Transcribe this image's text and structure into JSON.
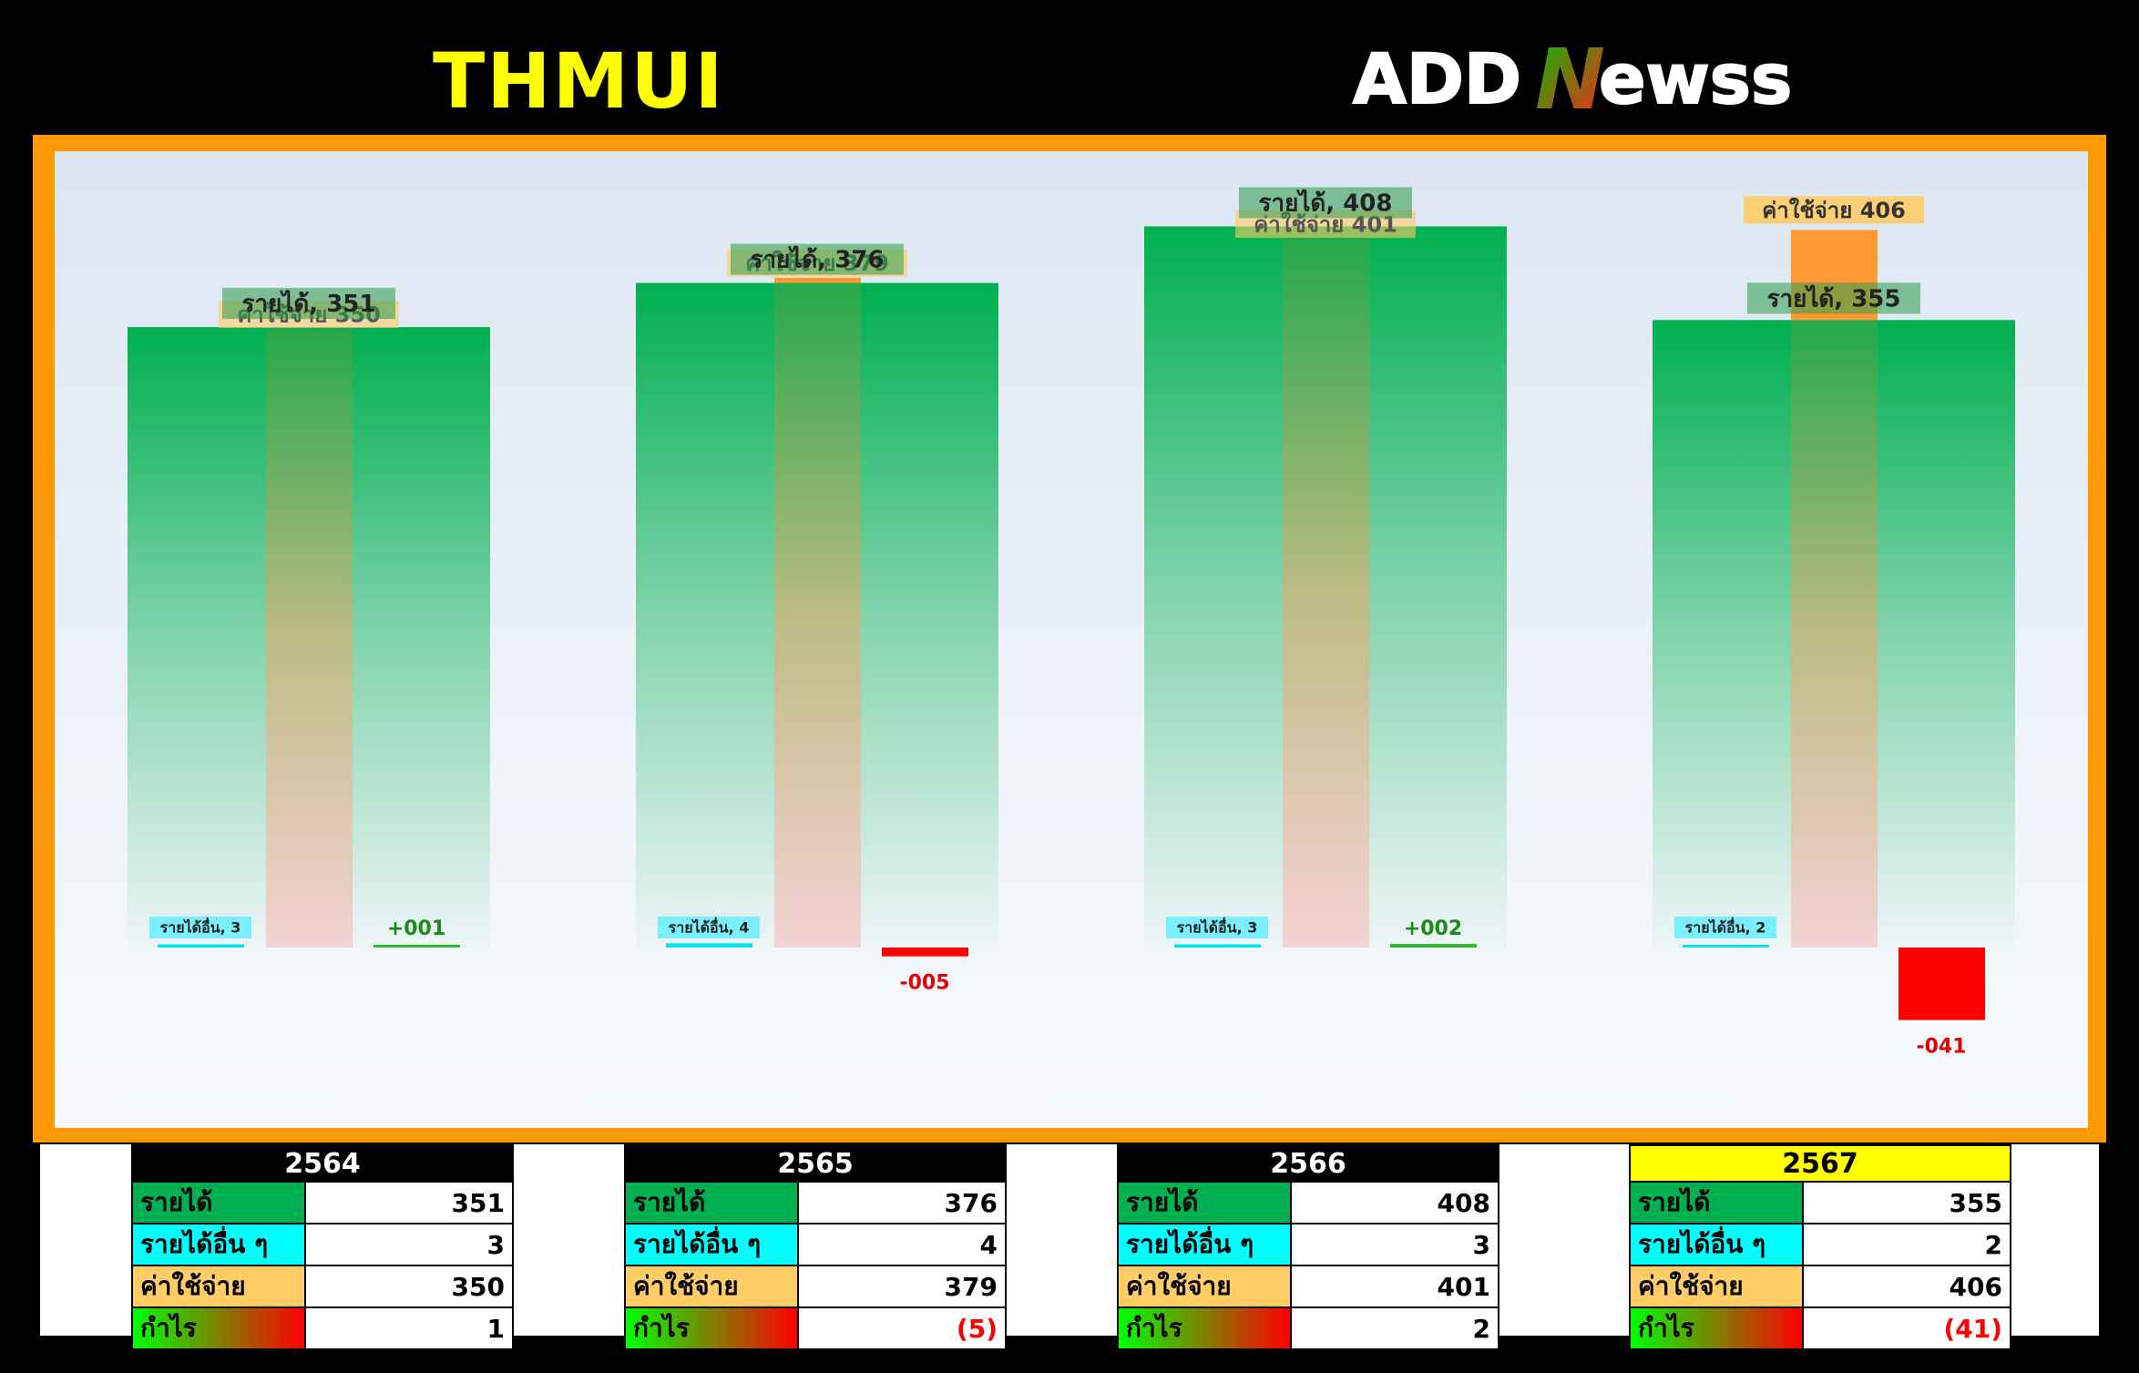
{
  "header": {
    "ticker": "THMUI",
    "logo_text_left": "ADD",
    "logo_text_n": "N",
    "logo_text_right": "ewss"
  },
  "colors": {
    "revenue": "#00b050",
    "other_income": "#00ffff",
    "expense": "#ffcc66",
    "expense_bar": "#ff9933",
    "profit_pos": "#2db82d",
    "profit_neg": "#ff0000",
    "frame": "#ff9900",
    "highlight_header": "#ffff00"
  },
  "chart_data": {
    "type": "bar",
    "categories": [
      "2564",
      "2565",
      "2566",
      "2567"
    ],
    "series": [
      {
        "name": "รายได้",
        "values": [
          351,
          376,
          408,
          355
        ]
      },
      {
        "name": "รายได้อื่น ๆ",
        "values": [
          3,
          4,
          3,
          2
        ]
      },
      {
        "name": "ค่าใช้จ่าย",
        "values": [
          350,
          379,
          401,
          406
        ]
      },
      {
        "name": "กำไร",
        "values": [
          1,
          -5,
          2,
          -41
        ]
      }
    ],
    "bar_labels": {
      "revenue": [
        "รายได้, 351",
        "รายได้, 376",
        "รายได้, 408",
        "รายได้, 355"
      ],
      "other_income": [
        "รายได้อื่น, 3",
        "รายได้อื่น, 4",
        "รายได้อื่น, 3",
        "รายได้อื่น, 2"
      ],
      "expense": [
        "ค่าใช้จ่าย 350",
        "ค่าใช้จ่าย 379",
        "ค่าใช้จ่าย 401",
        "ค่าใช้จ่าย 406"
      ],
      "profit": [
        "+001",
        "-005",
        "+002",
        "-041"
      ]
    },
    "ylim": [
      -60,
      420
    ],
    "grid": false,
    "legend": "none"
  },
  "tables": [
    {
      "year": "2564",
      "highlight": false,
      "rows": [
        {
          "label": "รายได้",
          "value": "351"
        },
        {
          "label": "รายได้อื่น ๆ",
          "value": "3"
        },
        {
          "label": "ค่าใช้จ่าย",
          "value": "350"
        },
        {
          "label": "กำไร",
          "value": "1"
        }
      ]
    },
    {
      "year": "2565",
      "highlight": false,
      "rows": [
        {
          "label": "รายได้",
          "value": "376"
        },
        {
          "label": "รายได้อื่น ๆ",
          "value": "4"
        },
        {
          "label": "ค่าใช้จ่าย",
          "value": "379"
        },
        {
          "label": "กำไร",
          "value": "(5)"
        }
      ]
    },
    {
      "year": "2566",
      "highlight": false,
      "rows": [
        {
          "label": "รายได้",
          "value": "408"
        },
        {
          "label": "รายได้อื่น ๆ",
          "value": "3"
        },
        {
          "label": "ค่าใช้จ่าย",
          "value": "401"
        },
        {
          "label": "กำไร",
          "value": "2"
        }
      ]
    },
    {
      "year": "2567",
      "highlight": true,
      "rows": [
        {
          "label": "รายได้",
          "value": "355"
        },
        {
          "label": "รายได้อื่น ๆ",
          "value": "2"
        },
        {
          "label": "ค่าใช้จ่าย",
          "value": "406"
        },
        {
          "label": "กำไร",
          "value": "(41)"
        }
      ]
    }
  ]
}
